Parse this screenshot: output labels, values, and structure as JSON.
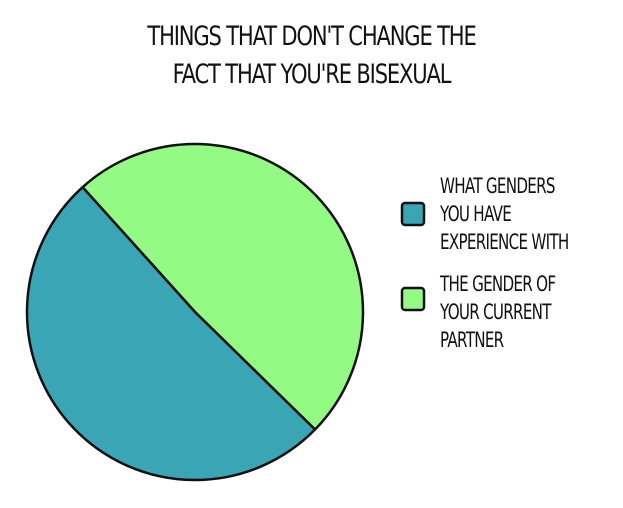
{
  "chart_data": {
    "type": "pie",
    "title": "THINGS THAT DON'T CHANGE THE FACT THAT YOU'RE BISEXUAL",
    "series": [
      {
        "name": "WHAT GENDERS YOU HAVE EXPERIENCE WITH",
        "color": "#3aa5b4",
        "values": [
          51
        ]
      },
      {
        "name": "THE GENDER OF YOUR CURRENT PARTNER",
        "color": "#93fb84",
        "values": [
          49
        ]
      }
    ]
  }
}
